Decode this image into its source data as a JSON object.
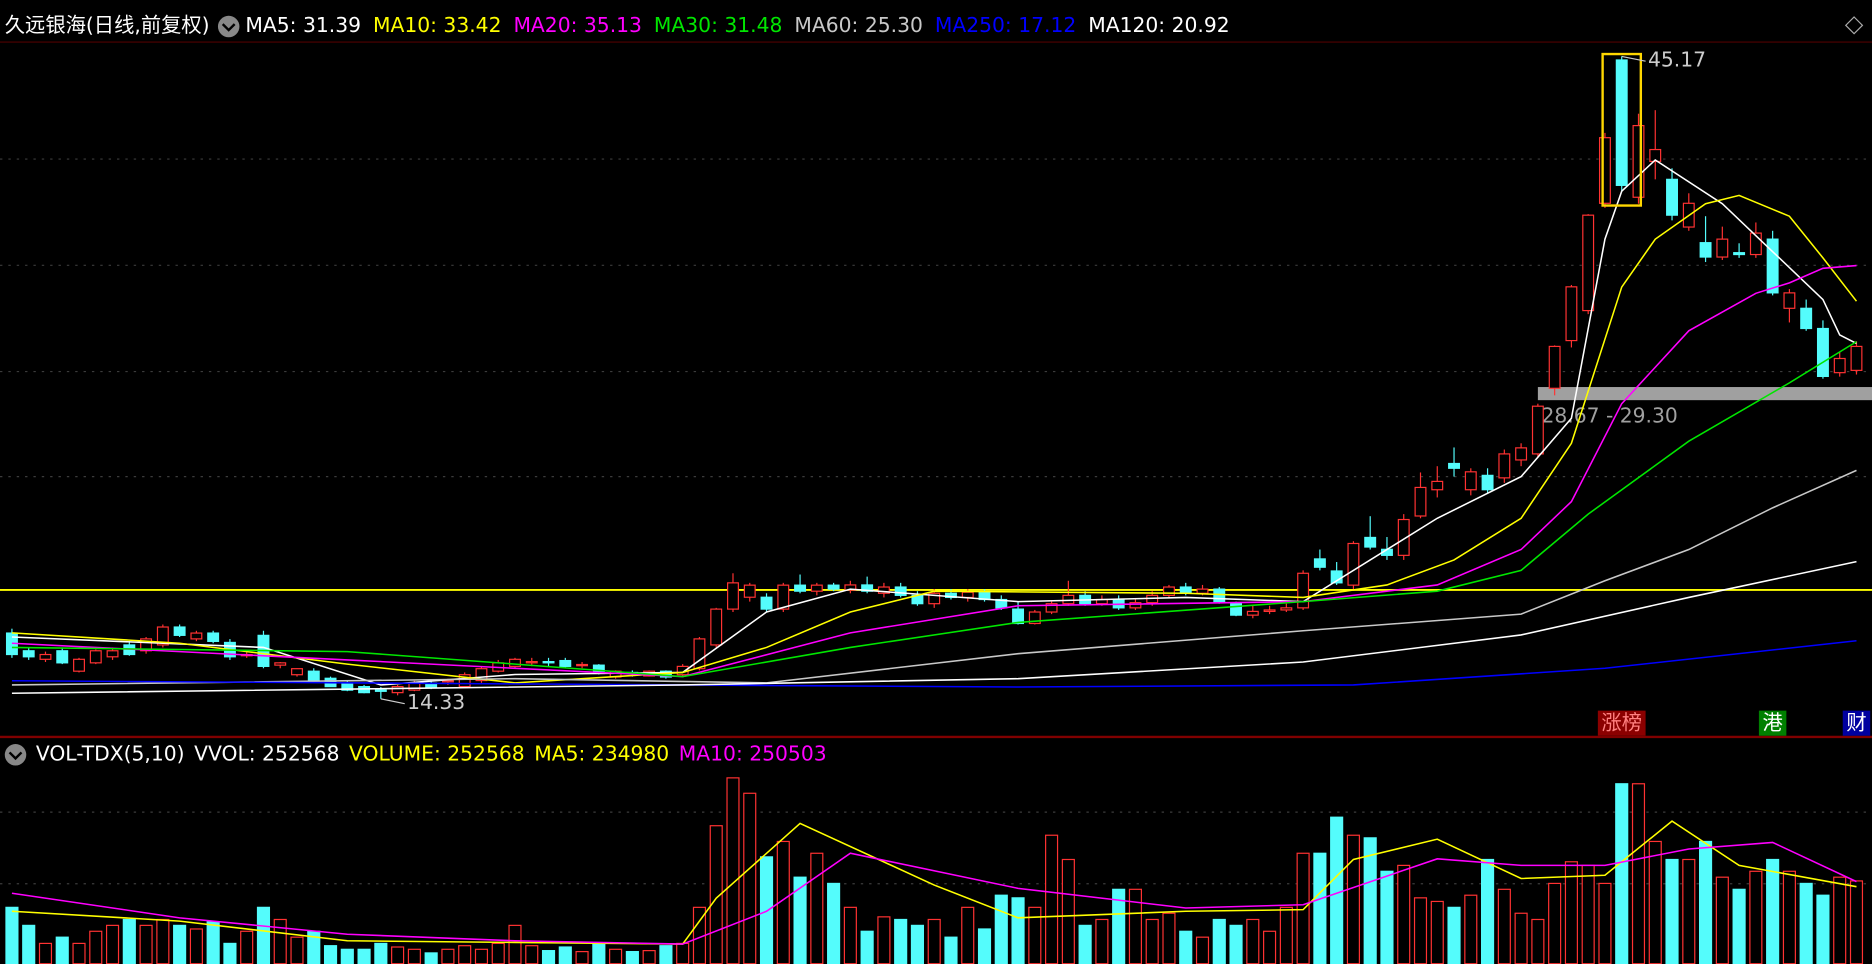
{
  "chart_data": [
    {
      "type": "candlestick",
      "title": "久远银海(日线,前复权)",
      "up_color": "#ff3232",
      "down_color": "#54fcfc",
      "ylim": [
        13.48,
        45.86
      ],
      "ohlc": [
        [
          17.49,
          17.7,
          16.3,
          16.46
        ],
        [
          16.64,
          16.8,
          16.2,
          16.35
        ],
        [
          16.23,
          16.6,
          16.1,
          16.46
        ],
        [
          16.64,
          16.8,
          16.0,
          16.06
        ],
        [
          15.66,
          16.3,
          15.6,
          16.23
        ],
        [
          16.06,
          16.7,
          16.0,
          16.64
        ],
        [
          16.35,
          16.8,
          16.2,
          16.64
        ],
        [
          16.92,
          17.1,
          16.4,
          16.46
        ],
        [
          16.64,
          17.3,
          16.5,
          17.21
        ],
        [
          16.92,
          17.9,
          16.8,
          17.78
        ],
        [
          17.78,
          17.9,
          17.3,
          17.38
        ],
        [
          17.21,
          17.6,
          17.1,
          17.49
        ],
        [
          17.49,
          17.6,
          17.0,
          17.09
        ],
        [
          17.04,
          17.2,
          16.2,
          16.35
        ],
        [
          16.4,
          16.6,
          16.3,
          16.46
        ],
        [
          17.38,
          17.6,
          15.8,
          15.89
        ],
        [
          15.95,
          16.1,
          15.8,
          16.06
        ],
        [
          15.49,
          15.8,
          15.4,
          15.78
        ],
        [
          15.66,
          15.8,
          15.1,
          15.21
        ],
        [
          15.32,
          15.4,
          14.9,
          14.92
        ],
        [
          15.09,
          15.2,
          14.7,
          14.75
        ],
        [
          14.92,
          15.0,
          14.6,
          14.63
        ],
        [
          14.75,
          14.9,
          14.33,
          14.7
        ],
        [
          14.63,
          15.0,
          14.5,
          14.92
        ],
        [
          14.75,
          15.2,
          14.7,
          15.09
        ],
        [
          15.09,
          15.2,
          14.8,
          14.87
        ],
        [
          15.15,
          15.3,
          15.0,
          15.21
        ],
        [
          14.92,
          15.6,
          14.9,
          15.49
        ],
        [
          15.21,
          15.9,
          15.1,
          15.78
        ],
        [
          15.66,
          16.2,
          15.6,
          16.06
        ],
        [
          15.89,
          16.3,
          15.8,
          16.23
        ],
        [
          16.06,
          16.3,
          15.9,
          16.12
        ],
        [
          16.12,
          16.3,
          15.9,
          16.06
        ],
        [
          16.17,
          16.3,
          15.8,
          15.89
        ],
        [
          15.95,
          16.1,
          15.8,
          15.98
        ],
        [
          15.95,
          16.0,
          15.5,
          15.55
        ],
        [
          15.38,
          15.7,
          15.3,
          15.66
        ],
        [
          15.6,
          15.7,
          15.4,
          15.55
        ],
        [
          15.43,
          15.7,
          15.4,
          15.66
        ],
        [
          15.66,
          15.7,
          15.3,
          15.38
        ],
        [
          15.49,
          16.0,
          15.4,
          15.89
        ],
        [
          15.78,
          17.3,
          15.7,
          17.21
        ],
        [
          16.92,
          18.7,
          16.8,
          18.64
        ],
        [
          18.64,
          20.36,
          18.5,
          19.9
        ],
        [
          19.21,
          19.9,
          19.0,
          19.79
        ],
        [
          19.21,
          19.4,
          18.5,
          18.64
        ],
        [
          18.64,
          19.9,
          18.5,
          19.79
        ],
        [
          19.79,
          20.3,
          19.4,
          19.5
        ],
        [
          19.5,
          19.9,
          19.3,
          19.79
        ],
        [
          19.79,
          19.9,
          19.5,
          19.6
        ],
        [
          19.55,
          20.0,
          19.4,
          19.8
        ],
        [
          19.8,
          20.2,
          19.4,
          19.5
        ],
        [
          19.4,
          19.9,
          19.2,
          19.7
        ],
        [
          19.7,
          19.9,
          19.2,
          19.3
        ],
        [
          19.3,
          19.5,
          18.8,
          18.9
        ],
        [
          18.9,
          19.6,
          18.7,
          19.4
        ],
        [
          19.4,
          19.6,
          19.1,
          19.2
        ],
        [
          19.2,
          19.6,
          19.0,
          19.45
        ],
        [
          19.45,
          19.6,
          19.0,
          19.1
        ],
        [
          19.1,
          19.3,
          18.6,
          18.7
        ],
        [
          18.64,
          19.0,
          17.9,
          17.95
        ],
        [
          17.95,
          18.6,
          17.9,
          18.5
        ],
        [
          18.5,
          19.0,
          18.4,
          18.9
        ],
        [
          18.9,
          20.0,
          18.8,
          19.3
        ],
        [
          19.3,
          19.5,
          18.8,
          18.9
        ],
        [
          18.9,
          19.3,
          18.8,
          19.1
        ],
        [
          19.1,
          19.3,
          18.6,
          18.7
        ],
        [
          18.7,
          19.1,
          18.6,
          18.95
        ],
        [
          18.95,
          19.5,
          18.8,
          19.3
        ],
        [
          19.3,
          19.8,
          19.2,
          19.7
        ],
        [
          19.7,
          19.9,
          19.3,
          19.4
        ],
        [
          19.4,
          19.8,
          19.3,
          19.6
        ],
        [
          19.6,
          19.7,
          18.9,
          19.0
        ],
        [
          18.93,
          19.0,
          18.3,
          18.35
        ],
        [
          18.35,
          18.8,
          18.2,
          18.53
        ],
        [
          18.53,
          18.8,
          18.4,
          18.6
        ],
        [
          18.6,
          18.9,
          18.5,
          18.7
        ],
        [
          18.7,
          20.5,
          18.6,
          20.36
        ],
        [
          21.05,
          21.5,
          20.5,
          20.65
        ],
        [
          20.47,
          20.9,
          19.8,
          19.9
        ],
        [
          19.79,
          21.9,
          19.6,
          21.79
        ],
        [
          22.08,
          23.1,
          21.5,
          21.62
        ],
        [
          21.51,
          22.1,
          21.0,
          21.22
        ],
        [
          21.22,
          23.2,
          21.0,
          22.94
        ],
        [
          23.11,
          25.2,
          23.0,
          24.48
        ],
        [
          24.37,
          25.5,
          24.0,
          24.77
        ],
        [
          25.63,
          26.4,
          25.0,
          25.4
        ],
        [
          24.37,
          25.4,
          24.1,
          25.23
        ],
        [
          25.06,
          25.4,
          24.2,
          24.37
        ],
        [
          24.94,
          26.3,
          24.7,
          26.09
        ],
        [
          25.8,
          26.6,
          25.5,
          26.38
        ],
        [
          26.09,
          28.5,
          25.9,
          28.38
        ],
        [
          29.24,
          31.3,
          28.9,
          31.25
        ],
        [
          31.53,
          34.2,
          31.2,
          34.11
        ],
        [
          32.97,
          37.6,
          32.8,
          37.55
        ],
        [
          38.12,
          41.5,
          37.9,
          41.27
        ],
        [
          45.0,
          45.17,
          38.7,
          38.98
        ],
        [
          38.41,
          42.42,
          38.1,
          41.85
        ],
        [
          40.13,
          42.59,
          39.27,
          40.7
        ],
        [
          39.27,
          39.8,
          37.3,
          37.55
        ],
        [
          36.98,
          38.6,
          36.8,
          38.12
        ],
        [
          36.23,
          37.5,
          35.3,
          35.54
        ],
        [
          35.54,
          37.0,
          35.4,
          36.4
        ],
        [
          35.75,
          36.2,
          35.5,
          35.66
        ],
        [
          35.66,
          37.2,
          35.5,
          36.69
        ],
        [
          36.4,
          36.8,
          33.7,
          33.82
        ],
        [
          33.08,
          34.0,
          32.4,
          33.82
        ],
        [
          33.08,
          33.5,
          32.0,
          32.11
        ],
        [
          32.11,
          32.5,
          29.7,
          29.81
        ],
        [
          29.99,
          31.0,
          29.8,
          30.67
        ],
        [
          30.1,
          31.5,
          29.9,
          31.25
        ]
      ],
      "series": [
        {
          "name": "MA5: 31.39",
          "color": "#ffffff",
          "x": [
            0,
            15,
            22,
            30,
            40,
            45,
            50,
            60,
            70,
            77,
            85,
            90,
            93,
            95,
            96,
            98,
            102,
            105,
            108,
            109,
            110
          ],
          "values": [
            17.3,
            16.8,
            15.0,
            15.5,
            15.6,
            18.5,
            19.6,
            19.0,
            19.2,
            19.0,
            23.0,
            25.0,
            27.8,
            36.4,
            38.7,
            40.2,
            38.1,
            35.8,
            33.5,
            31.8,
            31.39
          ]
        },
        {
          "name": "MA10: 33.42",
          "color": "#ffff00",
          "x": [
            0,
            10,
            20,
            30,
            40,
            45,
            50,
            55,
            70,
            77,
            82,
            86,
            90,
            93,
            96,
            98,
            101,
            103,
            106,
            108,
            110
          ],
          "values": [
            17.5,
            17.0,
            16.0,
            15.1,
            15.6,
            16.8,
            18.5,
            19.5,
            19.4,
            19.2,
            19.8,
            21.0,
            23.0,
            26.6,
            34.1,
            36.4,
            38.1,
            38.5,
            37.5,
            35.5,
            33.42
          ]
        },
        {
          "name": "MA20: 35.13",
          "color": "#ff00ff",
          "x": [
            0,
            20,
            40,
            50,
            60,
            77,
            85,
            90,
            93,
            96,
            100,
            104,
            106,
            108,
            110
          ],
          "values": [
            17.0,
            16.2,
            15.4,
            17.5,
            18.8,
            19.0,
            19.8,
            21.5,
            23.8,
            28.5,
            32.0,
            33.8,
            34.3,
            35.0,
            35.13
          ]
        },
        {
          "name": "MA30: 31.48",
          "color": "#00e600",
          "x": [
            0,
            20,
            30,
            40,
            50,
            60,
            77,
            85,
            90,
            94,
            100,
            106,
            110
          ],
          "values": [
            16.8,
            16.6,
            16.0,
            15.4,
            16.8,
            18.0,
            19.0,
            19.5,
            20.5,
            23.2,
            26.7,
            29.5,
            31.48
          ]
        },
        {
          "name": "MA60: 25.30",
          "color": "#c8c8c8",
          "x": [
            0,
            30,
            45,
            60,
            77,
            90,
            95,
            100,
            105,
            110
          ],
          "values": [
            15.0,
            15.3,
            15.1,
            16.5,
            17.6,
            18.4,
            20.0,
            21.5,
            23.5,
            25.3
          ]
        },
        {
          "name": "MA250: 17.12",
          "color": "#0000ff",
          "x": [
            0,
            40,
            60,
            80,
            95,
            110
          ],
          "values": [
            15.2,
            15.0,
            14.9,
            15.0,
            15.8,
            17.12
          ]
        },
        {
          "name": "MA120: 20.92",
          "color": "#ffffff",
          "x": [
            0,
            40,
            60,
            77,
            90,
            100,
            110
          ],
          "values": [
            14.6,
            15.0,
            15.3,
            16.1,
            17.4,
            19.2,
            20.92
          ]
        }
      ],
      "annotations": [
        {
          "text": "45.17",
          "index": 96,
          "value": 45.17
        },
        {
          "text": "14.33",
          "index": 22,
          "value": 14.33
        }
      ],
      "highlight": 96,
      "hline": {
        "value": 19.56,
        "color": "#ffff00"
      },
      "band": {
        "from": 28.67,
        "to": 29.3,
        "start": 91,
        "label": "28.67 - 29.30",
        "color": "#a0a0a0"
      },
      "tags": [
        {
          "text": "涨榜",
          "index": 96,
          "color": "#8b0000",
          "text_color": "#ff8080"
        },
        {
          "text": "港",
          "index": 105,
          "color": "#008000",
          "text_color": "#ffffff"
        },
        {
          "text": "财",
          "index": 110,
          "color": "#0000a0",
          "text_color": "#ffffff"
        }
      ]
    },
    {
      "type": "volume",
      "title": "VOL-TDX(5,10)",
      "vvol_label": "VVOL: 252568",
      "ylim": [
        0,
        590000
      ],
      "values": [
        172000,
        117000,
        62000,
        81000,
        62000,
        99000,
        117000,
        135000,
        117000,
        135000,
        117000,
        106000,
        128000,
        62000,
        99000,
        172000,
        135000,
        81000,
        99000,
        55000,
        44000,
        44000,
        62000,
        51000,
        44000,
        33000,
        44000,
        55000,
        44000,
        62000,
        117000,
        55000,
        40000,
        51000,
        37000,
        62000,
        44000,
        37000,
        40000,
        55000,
        62000,
        172000,
        421000,
        567000,
        520000,
        326000,
        373000,
        264000,
        337000,
        245000,
        172000,
        99000,
        143000,
        135000,
        117000,
        135000,
        81000,
        172000,
        106000,
        209000,
        201000,
        172000,
        392000,
        318000,
        117000,
        135000,
        227000,
        227000,
        135000,
        154000,
        99000,
        81000,
        135000,
        117000,
        135000,
        99000,
        172000,
        337000,
        337000,
        447000,
        392000,
        384000,
        282000,
        300000,
        201000,
        190000,
        172000,
        209000,
        318000,
        227000,
        154000,
        135000,
        245000,
        311000,
        300000,
        245000,
        549000,
        549000,
        373000,
        318000,
        318000,
        373000,
        264000,
        227000,
        282000,
        318000,
        282000,
        245000,
        209000,
        264000,
        252568
      ],
      "value_series_name": "VOLUME: 252568",
      "value_series_color": "#ffff00",
      "series": [
        {
          "name": "MA5: 234980",
          "color": "#ffff00",
          "x": [
            0,
            10,
            20,
            30,
            40,
            42,
            47,
            55,
            60,
            70,
            77,
            80,
            85,
            90,
            95,
            99,
            103,
            110
          ],
          "values": [
            160000,
            130000,
            70000,
            65000,
            60000,
            200000,
            428000,
            240000,
            140000,
            160000,
            165000,
            318000,
            380000,
            260000,
            270000,
            435000,
            300000,
            234980
          ]
        },
        {
          "name": "MA10: 250503",
          "color": "#ff00ff",
          "x": [
            0,
            10,
            20,
            30,
            40,
            45,
            50,
            60,
            70,
            77,
            85,
            90,
            95,
            100,
            105,
            110
          ],
          "values": [
            215000,
            140000,
            90000,
            70000,
            60000,
            160000,
            337000,
            230000,
            170000,
            180000,
            320000,
            300000,
            300000,
            350000,
            370000,
            250503
          ]
        }
      ]
    }
  ]
}
